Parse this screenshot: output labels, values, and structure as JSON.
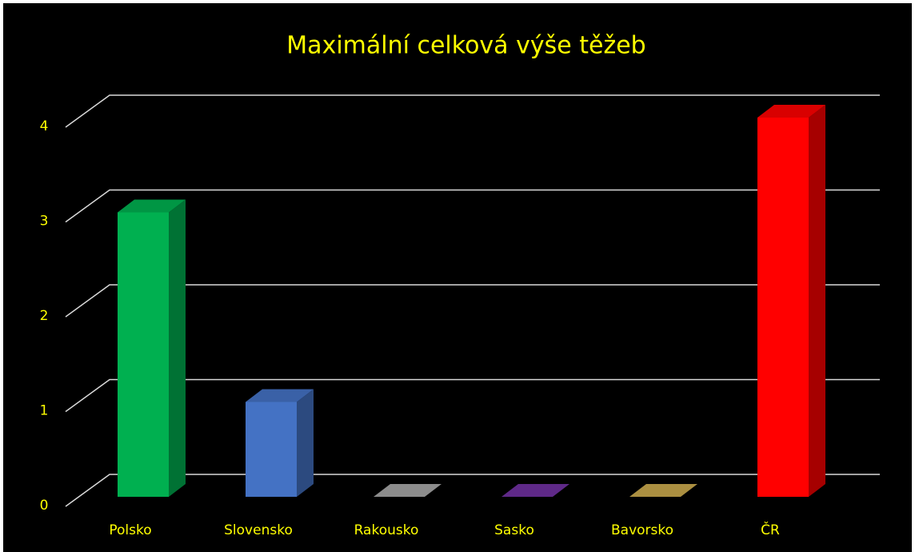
{
  "chart_data": {
    "type": "bar3d",
    "title": "Maximální celková výše těžeb",
    "categories": [
      "Polsko",
      "Slovensko",
      "Rakousko",
      "Sasko",
      "Bavorsko",
      "ČR"
    ],
    "values": [
      3,
      1,
      0,
      0,
      0,
      4
    ],
    "colors": [
      "#00b050",
      "#4472c4",
      "#a5a5a5",
      "#7030a0",
      "#c9a84c",
      "#ff0000"
    ],
    "ylim": [
      0,
      4
    ],
    "yticks": [
      0,
      1,
      2,
      3,
      4
    ],
    "grid": true
  }
}
